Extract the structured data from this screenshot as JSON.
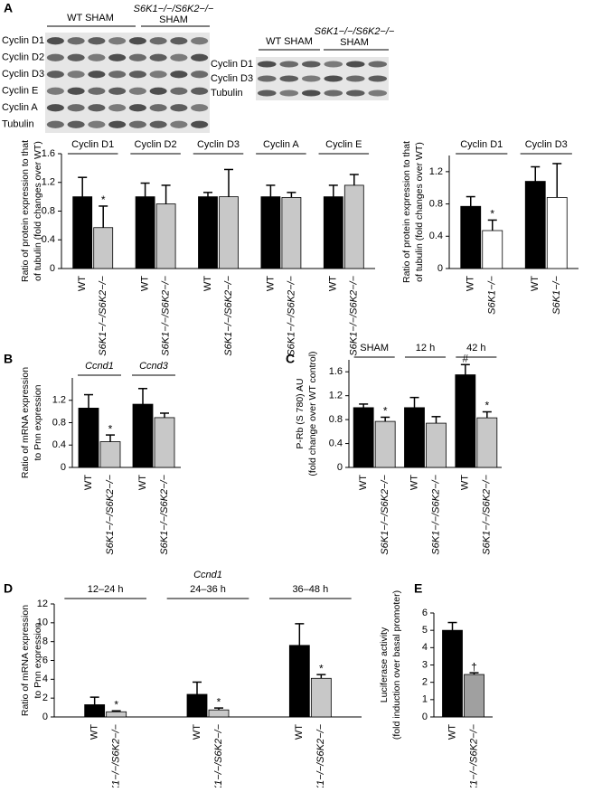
{
  "blots": [
    {
      "columns": [
        [
          "WT SHAM"
        ],
        [
          "S6K1−/−/S6K2−/−",
          "SHAM"
        ]
      ],
      "rows": [
        "Cyclin D1",
        "Cyclin D2",
        "Cyclin D3",
        "Cyclin E",
        "Cyclin A",
        "Tubulin"
      ]
    },
    {
      "columns": [
        [
          "WT SHAM"
        ],
        [
          "S6K1−/−/S6K2−/−",
          "SHAM"
        ]
      ],
      "rows": [
        "Cyclin D1",
        "Cyclin D3",
        "Tubulin"
      ]
    }
  ],
  "chart_data": [
    {
      "type": "bar",
      "panel": "A",
      "ylabel": [
        "Ratio of protein expression to that",
        "of tubulin (fold changes over WT)"
      ],
      "groups": [
        "Cyclin D1",
        "Cyclin D2",
        "Cyclin D3",
        "Cyclin A",
        "Cyclin E"
      ],
      "series": [
        {
          "name": "WT",
          "color": "#000000",
          "values": [
            1.0,
            1.0,
            1.0,
            1.0,
            1.0
          ],
          "errors": [
            0.27,
            0.19,
            0.06,
            0.16,
            0.16
          ],
          "markers": [
            null,
            null,
            null,
            null,
            null
          ]
        },
        {
          "name": "S6K1−/−/S6K2−/−",
          "color": "#c8c8c8",
          "values": [
            0.57,
            0.9,
            1.0,
            0.99,
            1.16
          ],
          "errors": [
            0.3,
            0.26,
            0.38,
            0.07,
            0.15
          ],
          "markers": [
            "*",
            null,
            null,
            null,
            null
          ]
        }
      ],
      "ylim": [
        0,
        1.6
      ],
      "yticks": [
        0,
        0.4,
        0.8,
        1.2,
        1.6
      ]
    },
    {
      "type": "bar",
      "ylabel": [
        "Ratio of protein expression to that",
        "of tubulin (fold changes over WT)"
      ],
      "groups": [
        "Cyclin D1",
        "Cyclin D3"
      ],
      "series": [
        {
          "name": "WT",
          "color": "#000000",
          "values": [
            0.77,
            1.08
          ],
          "errors": [
            0.12,
            0.18
          ],
          "markers": [
            null,
            null
          ]
        },
        {
          "name": "S6K1−/−",
          "color": "#ffffff",
          "values": [
            0.47,
            0.88
          ],
          "errors": [
            0.13,
            0.42
          ],
          "markers": [
            "*",
            null
          ]
        }
      ],
      "ylim": [
        0,
        1.4
      ],
      "yticks": [
        0,
        0.4,
        0.8,
        1.2
      ]
    },
    {
      "type": "bar",
      "panel": "B",
      "ylabel": [
        "Ratio of mRNA expression",
        "to Pnn expression"
      ],
      "groups": [
        "Ccnd1",
        "Ccnd3"
      ],
      "series": [
        {
          "name": "WT",
          "color": "#000000",
          "values": [
            1.06,
            1.13
          ],
          "errors": [
            0.24,
            0.28
          ],
          "markers": [
            null,
            null
          ]
        },
        {
          "name": "S6K1−/−/S6K2−/−",
          "color": "#c8c8c8",
          "values": [
            0.46,
            0.89
          ],
          "errors": [
            0.12,
            0.08
          ],
          "markers": [
            "*",
            null
          ]
        }
      ],
      "ylim": [
        0,
        1.6
      ],
      "yticks": [
        0,
        0.4,
        0.8,
        1.2
      ]
    },
    {
      "type": "bar",
      "panel": "C",
      "ylabel": [
        "P-Rb (S 780) AU",
        "(fold change over WT control)"
      ],
      "groups": [
        "SHAM",
        "12 h",
        "42 h"
      ],
      "series": [
        {
          "name": "WT",
          "color": "#000000",
          "values": [
            1.0,
            1.0,
            1.55
          ],
          "errors": [
            0.06,
            0.17,
            0.17
          ],
          "markers": [
            null,
            null,
            "#"
          ]
        },
        {
          "name": "S6K1−/−/S6K2−/−",
          "color": "#c8c8c8",
          "values": [
            0.77,
            0.74,
            0.83
          ],
          "errors": [
            0.07,
            0.11,
            0.1
          ],
          "markers": [
            "*",
            null,
            "*"
          ]
        }
      ],
      "ylim": [
        0,
        1.8
      ],
      "yticks": [
        0,
        0.4,
        0.8,
        1.2,
        1.6
      ]
    },
    {
      "type": "bar",
      "panel": "D",
      "subtitle": "Ccnd1",
      "ylabel": [
        "Ratio of mRNA expression",
        "to Pnn expression"
      ],
      "groups": [
        "12–24 h",
        "24–36 h",
        "36–48 h"
      ],
      "series": [
        {
          "name": "WT",
          "color": "#000000",
          "values": [
            1.3,
            2.4,
            7.6
          ],
          "errors": [
            0.8,
            1.3,
            2.3
          ],
          "markers": [
            null,
            null,
            null
          ]
        },
        {
          "name": "S6K1−/−/S6K2−/−",
          "color": "#c8c8c8",
          "values": [
            0.55,
            0.75,
            4.1
          ],
          "errors": [
            0.1,
            0.2,
            0.4
          ],
          "markers": [
            "*",
            "*",
            "*"
          ]
        }
      ],
      "ylim": [
        0,
        12
      ],
      "yticks": [
        0,
        2,
        4,
        6,
        8,
        10,
        12
      ]
    },
    {
      "type": "bar",
      "panel": "E",
      "ylabel": [
        "Luciferase activity",
        "(fold induction over basal promoter)"
      ],
      "groups": [
        null
      ],
      "series": [
        {
          "name": "WT",
          "color": "#000000",
          "values": [
            5.0
          ],
          "errors": [
            0.45
          ],
          "markers": [
            null
          ]
        },
        {
          "name": "S6K1−/−/S6K2−/−",
          "color": "#a0a0a0",
          "values": [
            2.45
          ],
          "errors": [
            0.1
          ],
          "markers": [
            "†"
          ]
        }
      ],
      "ylim": [
        0,
        6
      ],
      "yticks": [
        0,
        1,
        2,
        3,
        4,
        5,
        6
      ]
    }
  ]
}
